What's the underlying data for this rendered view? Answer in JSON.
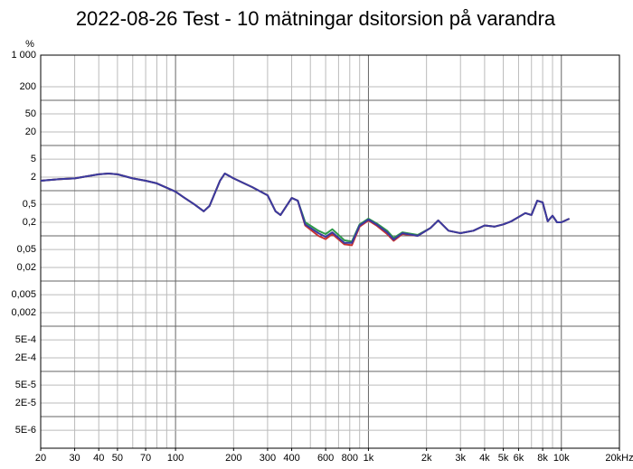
{
  "chart_data": {
    "type": "line",
    "title": "2022-08-26 Test - 10 mätningar dsitorsion på varandra",
    "y_unit": "%",
    "x": [
      20,
      25,
      30,
      40,
      45,
      50,
      60,
      70,
      80,
      100,
      110,
      125,
      140,
      150,
      170,
      180,
      200,
      250,
      300,
      330,
      350,
      400,
      430,
      470,
      550,
      600,
      650,
      750,
      820,
      900,
      1000,
      1100,
      1250,
      1350,
      1500,
      1800,
      2100,
      2300,
      2600,
      3000,
      3500,
      4000,
      4500,
      5000,
      5500,
      6500,
      7000,
      7500,
      8000,
      8500,
      9000,
      9500,
      10000,
      11000
    ],
    "series": [
      {
        "color": "#2e9a4a",
        "values": [
          1.66,
          1.8,
          1.87,
          2.3,
          2.4,
          2.3,
          1.87,
          1.66,
          1.45,
          0.95,
          0.72,
          0.5,
          0.35,
          0.46,
          1.66,
          2.4,
          1.87,
          1.2,
          0.79,
          0.35,
          0.29,
          0.69,
          0.6,
          0.2,
          0.13,
          0.11,
          0.14,
          0.08,
          0.075,
          0.18,
          0.24,
          0.19,
          0.13,
          0.09,
          0.12,
          0.105,
          0.15,
          0.22,
          0.13,
          0.115,
          0.13,
          0.17,
          0.16,
          0.18,
          0.21,
          0.32,
          0.29,
          0.6,
          0.55,
          0.21,
          0.28,
          0.2,
          0.2,
          0.24
        ]
      },
      {
        "color": "#c83232",
        "values": [
          1.66,
          1.8,
          1.87,
          2.3,
          2.4,
          2.3,
          1.87,
          1.66,
          1.45,
          0.95,
          0.72,
          0.5,
          0.35,
          0.46,
          1.66,
          2.4,
          1.87,
          1.2,
          0.79,
          0.35,
          0.29,
          0.69,
          0.6,
          0.17,
          0.1,
          0.085,
          0.11,
          0.065,
          0.062,
          0.16,
          0.22,
          0.17,
          0.11,
          0.078,
          0.11,
          0.1,
          0.15,
          0.22,
          0.13,
          0.115,
          0.13,
          0.17,
          0.16,
          0.18,
          0.21,
          0.32,
          0.29,
          0.6,
          0.55,
          0.21,
          0.28,
          0.2,
          0.2,
          0.24
        ]
      },
      {
        "color": "#3a3aa0",
        "values": [
          1.66,
          1.8,
          1.87,
          2.3,
          2.4,
          2.3,
          1.87,
          1.66,
          1.45,
          0.95,
          0.72,
          0.5,
          0.35,
          0.46,
          1.66,
          2.4,
          1.87,
          1.2,
          0.79,
          0.35,
          0.29,
          0.69,
          0.6,
          0.18,
          0.115,
          0.095,
          0.12,
          0.07,
          0.07,
          0.17,
          0.23,
          0.18,
          0.12,
          0.083,
          0.115,
          0.1,
          0.15,
          0.22,
          0.13,
          0.115,
          0.13,
          0.17,
          0.16,
          0.18,
          0.21,
          0.32,
          0.29,
          0.6,
          0.55,
          0.21,
          0.28,
          0.2,
          0.2,
          0.24
        ]
      }
    ],
    "xlog": true,
    "ylog": true,
    "xlim": [
      20,
      20000
    ],
    "xticks": [
      20,
      30,
      40,
      50,
      70,
      100,
      200,
      300,
      400,
      600,
      800,
      {
        "value": 1000,
        "label": "1k"
      },
      {
        "value": 2000,
        "label": "2k"
      },
      {
        "value": 3000,
        "label": "3k"
      },
      {
        "value": 4000,
        "label": "4k"
      },
      {
        "value": 5000,
        "label": "5k"
      },
      {
        "value": 6000,
        "label": "6k"
      },
      {
        "value": 8000,
        "label": "8k"
      },
      {
        "value": 10000,
        "label": "10k"
      },
      {
        "value": 20000,
        "label": "20kHz"
      }
    ],
    "ylim": [
      2e-06,
      1000
    ],
    "yticks": [
      {
        "value": 1000,
        "label": "1 000"
      },
      200,
      50,
      20,
      5,
      2,
      {
        "value": 0.5,
        "label": "0,5"
      },
      {
        "value": 0.2,
        "label": "0,2"
      },
      {
        "value": 0.05,
        "label": "0,05"
      },
      {
        "value": 0.02,
        "label": "0,02"
      },
      {
        "value": 0.005,
        "label": "0,005"
      },
      {
        "value": 0.002,
        "label": "0,002"
      },
      {
        "value": 0.0005,
        "label": "5E-4"
      },
      {
        "value": 0.0002,
        "label": "2E-4"
      },
      {
        "value": 5e-05,
        "label": "5E-5"
      },
      {
        "value": 2e-05,
        "label": "2E-5"
      },
      {
        "value": 5e-06,
        "label": "5E-6"
      }
    ],
    "grid": true
  }
}
